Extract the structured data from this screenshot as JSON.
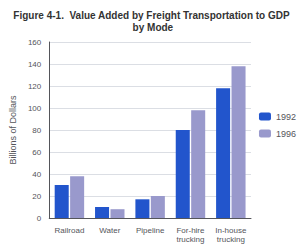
{
  "chart_data": {
    "type": "bar",
    "title": "Figure 4-1.  Value Added by Freight Transportation to GDP by Mode",
    "ylabel": "Billions of Dollars",
    "categories": [
      "Railroad",
      "Water",
      "Pipeline",
      "For-hire\ntrucking",
      "In-house\ntrucking"
    ],
    "series": [
      {
        "name": "1992",
        "color": "#2255cc",
        "values": [
          30,
          10,
          17,
          80,
          118
        ]
      },
      {
        "name": "1996",
        "color": "#9999cc",
        "values": [
          38,
          8,
          20,
          98,
          138
        ]
      }
    ],
    "ylim": [
      0,
      160
    ],
    "yticks": [
      0,
      20,
      40,
      60,
      80,
      100,
      120,
      140,
      160
    ],
    "grid": true,
    "legend": "right"
  }
}
